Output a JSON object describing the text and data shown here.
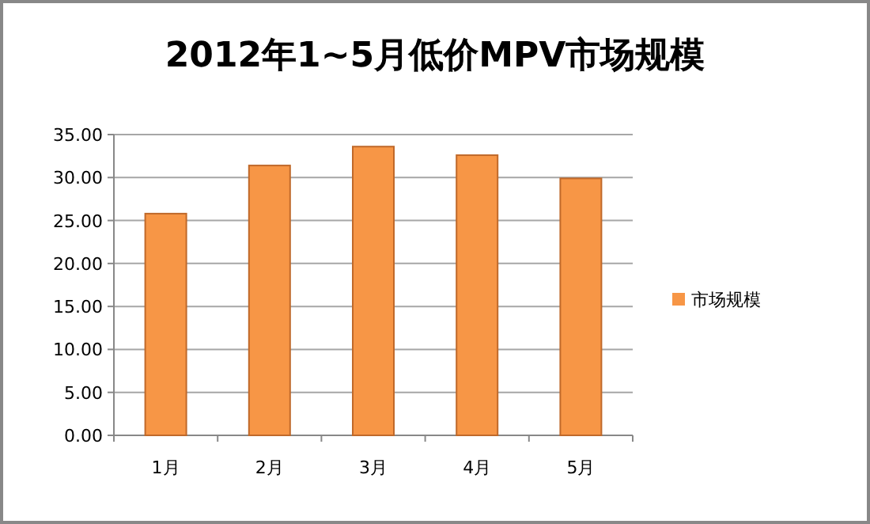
{
  "chart_data": {
    "type": "bar",
    "title": "2012年1~5月低价MPV市场规模",
    "categories": [
      "1月",
      "2月",
      "3月",
      "4月",
      "5月"
    ],
    "series": [
      {
        "name": "市场规模",
        "color": "#f79646",
        "values": [
          25.8,
          31.4,
          33.6,
          32.6,
          29.9
        ]
      }
    ],
    "ylim": [
      0,
      35
    ],
    "yticks": [
      {
        "value": 0,
        "label": "0.00"
      },
      {
        "value": 5,
        "label": "5.00"
      },
      {
        "value": 10,
        "label": "10.00"
      },
      {
        "value": 15,
        "label": "15.00"
      },
      {
        "value": 20,
        "label": "20.00"
      },
      {
        "value": 25,
        "label": "25.00"
      },
      {
        "value": 30,
        "label": "30.00"
      },
      {
        "value": 35,
        "label": "35.00"
      }
    ],
    "grid": "y",
    "legend": "right"
  }
}
